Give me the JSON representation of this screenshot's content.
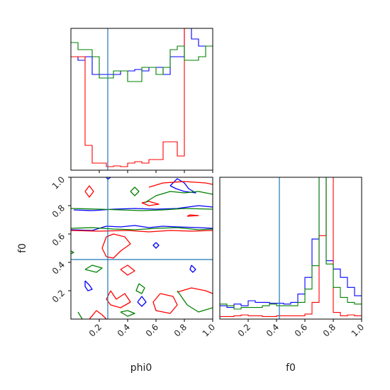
{
  "chart_data": {
    "type": "corner",
    "params": [
      "phi0",
      "f0"
    ],
    "xlabels": [
      "phi0",
      "f0"
    ],
    "ylabels": [
      "",
      "f0"
    ],
    "range": [
      [
        0.0,
        1.0
      ],
      [
        0.0,
        1.0
      ]
    ],
    "truth": {
      "phi0": 0.26,
      "f0": 0.42
    },
    "truth_color": "#1f77b4",
    "ticks": [
      0.2,
      0.4,
      0.6,
      0.8,
      1.0
    ],
    "tick_labels": [
      "0.2",
      "0.4",
      "0.6",
      "0.8",
      "1.0"
    ],
    "series": [
      {
        "color": "#0000ff"
      },
      {
        "color": "#ff0000"
      },
      {
        "color": "#008000"
      }
    ],
    "hist_phi0": {
      "bins": 20,
      "ylim": [
        0,
        2.0
      ],
      "values": [
        [
          1.6,
          1.55,
          1.6,
          1.35,
          1.35,
          1.35,
          1.35,
          1.4,
          1.4,
          1.42,
          1.4,
          1.45,
          1.45,
          1.35,
          1.6,
          1.6,
          2.1,
          1.85,
          1.75,
          1.75
        ],
        [
          1.6,
          1.6,
          0.35,
          0.1,
          0.1,
          0.05,
          0.06,
          0.05,
          0.1,
          0.12,
          0.1,
          0.15,
          0.15,
          0.4,
          0.4,
          0.2,
          2.1,
          2.1,
          2.1,
          2.1
        ],
        [
          1.8,
          1.7,
          1.7,
          1.6,
          1.3,
          1.3,
          1.4,
          1.4,
          1.25,
          1.25,
          1.45,
          1.45,
          1.35,
          1.45,
          1.7,
          1.75,
          1.55,
          1.55,
          1.6,
          1.75
        ]
      ]
    },
    "hist_f0": {
      "bins": 20,
      "ylim": [
        0,
        8.5
      ],
      "values": [
        [
          0.8,
          0.7,
          0.9,
          0.8,
          1.1,
          1.0,
          1.0,
          0.95,
          0.95,
          0.9,
          1.0,
          1.5,
          2.5,
          4.8,
          9.0,
          3.5,
          3.0,
          2.5,
          1.9,
          1.4
        ],
        [
          0.15,
          0.15,
          0.2,
          0.25,
          0.2,
          0.2,
          0.15,
          0.15,
          0.2,
          0.2,
          0.2,
          0.2,
          0.3,
          1.0,
          5.0,
          9.0,
          0.4,
          0.2,
          0.25,
          0.2
        ],
        [
          0.9,
          0.8,
          0.6,
          0.7,
          0.7,
          0.7,
          0.8,
          0.9,
          0.8,
          0.8,
          0.8,
          1.0,
          1.8,
          3.2,
          9.0,
          3.3,
          1.9,
          1.3,
          1.0,
          0.9
        ]
      ]
    },
    "contours": [
      {
        "color": "#0000ff",
        "paths": [
          [
            [
              0.02,
              0.77
            ],
            [
              0.15,
              0.765
            ],
            [
              0.3,
              0.775
            ],
            [
              0.45,
              0.78
            ],
            [
              0.6,
              0.775
            ],
            [
              0.75,
              0.78
            ],
            [
              0.9,
              0.8
            ],
            [
              1.0,
              0.79
            ]
          ],
          [
            [
              0.0,
              0.63
            ],
            [
              0.15,
              0.625
            ],
            [
              0.25,
              0.655
            ],
            [
              0.35,
              0.65
            ],
            [
              0.45,
              0.66
            ],
            [
              0.55,
              0.645
            ],
            [
              0.65,
              0.655
            ],
            [
              0.75,
              0.65
            ],
            [
              0.9,
              0.645
            ],
            [
              1.0,
              0.64
            ]
          ],
          [
            [
              0.7,
              0.94
            ],
            [
              0.75,
              0.99
            ],
            [
              0.8,
              0.96
            ],
            [
              0.83,
              0.92
            ],
            [
              0.88,
              0.89
            ],
            [
              0.8,
              0.9
            ],
            [
              0.74,
              0.92
            ],
            [
              0.7,
              0.94
            ]
          ],
          [
            [
              0.1,
              0.27
            ],
            [
              0.13,
              0.24
            ],
            [
              0.15,
              0.21
            ],
            [
              0.12,
              0.2
            ],
            [
              0.1,
              0.23
            ],
            [
              0.1,
              0.27
            ]
          ],
          [
            [
              0.47,
              0.12
            ],
            [
              0.5,
              0.16
            ],
            [
              0.53,
              0.12
            ],
            [
              0.5,
              0.09
            ],
            [
              0.47,
              0.12
            ]
          ],
          [
            [
              0.85,
              0.38
            ],
            [
              0.88,
              0.35
            ],
            [
              0.86,
              0.33
            ],
            [
              0.84,
              0.35
            ],
            [
              0.85,
              0.38
            ]
          ],
          [
            [
              0.6,
              0.54
            ],
            [
              0.62,
              0.52
            ],
            [
              0.6,
              0.5
            ],
            [
              0.58,
              0.52
            ],
            [
              0.6,
              0.54
            ]
          ],
          [
            [
              0.25,
              1.0
            ],
            [
              0.26,
              0.985
            ],
            [
              0.28,
              1.0
            ]
          ]
        ]
      },
      {
        "color": "#ff0000",
        "paths": [
          [
            [
              0.0,
              0.625
            ],
            [
              0.2,
              0.62
            ],
            [
              0.4,
              0.625
            ],
            [
              0.55,
              0.615
            ],
            [
              0.7,
              0.625
            ],
            [
              0.85,
              0.62
            ],
            [
              1.0,
              0.625
            ]
          ],
          [
            [
              0.1,
              0.9
            ],
            [
              0.13,
              0.94
            ],
            [
              0.16,
              0.9
            ],
            [
              0.13,
              0.86
            ],
            [
              0.1,
              0.9
            ]
          ],
          [
            [
              0.25,
              0.58
            ],
            [
              0.22,
              0.5
            ],
            [
              0.25,
              0.44
            ],
            [
              0.3,
              0.43
            ],
            [
              0.35,
              0.48
            ],
            [
              0.42,
              0.53
            ],
            [
              0.38,
              0.58
            ],
            [
              0.3,
              0.6
            ],
            [
              0.25,
              0.58
            ]
          ],
          [
            [
              0.5,
              0.82
            ],
            [
              0.55,
              0.8
            ],
            [
              0.62,
              0.81
            ],
            [
              0.55,
              0.83
            ],
            [
              0.5,
              0.82
            ]
          ],
          [
            [
              0.55,
              0.93
            ],
            [
              0.65,
              0.96
            ],
            [
              0.8,
              0.97
            ],
            [
              0.95,
              0.96
            ],
            [
              1.0,
              0.95
            ]
          ],
          [
            [
              0.28,
              0.2
            ],
            [
              0.32,
              0.14
            ],
            [
              0.38,
              0.18
            ],
            [
              0.42,
              0.12
            ],
            [
              0.35,
              0.08
            ],
            [
              0.28,
              0.1
            ],
            [
              0.25,
              0.14
            ],
            [
              0.28,
              0.2
            ]
          ],
          [
            [
              0.63,
              0.18
            ],
            [
              0.72,
              0.16
            ],
            [
              0.75,
              0.1
            ],
            [
              0.7,
              0.04
            ],
            [
              0.6,
              0.06
            ],
            [
              0.58,
              0.12
            ],
            [
              0.63,
              0.18
            ]
          ],
          [
            [
              0.35,
              0.35
            ],
            [
              0.4,
              0.38
            ],
            [
              0.45,
              0.34
            ],
            [
              0.4,
              0.31
            ],
            [
              0.35,
              0.35
            ]
          ],
          [
            [
              0.13,
              0.0
            ],
            [
              0.18,
              0.06
            ],
            [
              0.22,
              0.03
            ],
            [
              0.25,
              0.0
            ]
          ],
          [
            [
              0.75,
              0.19
            ],
            [
              0.85,
              0.22
            ],
            [
              0.95,
              0.2
            ],
            [
              1.0,
              0.18
            ]
          ],
          [
            [
              0.82,
              0.725
            ],
            [
              0.9,
              0.73
            ],
            [
              0.84,
              0.735
            ],
            [
              0.82,
              0.725
            ]
          ]
        ]
      },
      {
        "color": "#008000",
        "paths": [
          [
            [
              0.0,
              0.78
            ],
            [
              0.2,
              0.775
            ],
            [
              0.35,
              0.77
            ],
            [
              0.5,
              0.765
            ],
            [
              0.65,
              0.77
            ],
            [
              0.8,
              0.78
            ],
            [
              1.0,
              0.775
            ]
          ],
          [
            [
              0.0,
              0.64
            ],
            [
              0.15,
              0.645
            ],
            [
              0.3,
              0.635
            ],
            [
              0.45,
              0.63
            ],
            [
              0.6,
              0.64
            ],
            [
              0.75,
              0.645
            ],
            [
              0.9,
              0.63
            ],
            [
              1.0,
              0.635
            ]
          ],
          [
            [
              0.52,
              0.82
            ],
            [
              0.6,
              0.87
            ],
            [
              0.7,
              0.9
            ],
            [
              0.8,
              0.89
            ],
            [
              0.9,
              0.9
            ],
            [
              1.0,
              0.88
            ]
          ],
          [
            [
              0.42,
              0.9
            ],
            [
              0.45,
              0.93
            ],
            [
              0.48,
              0.9
            ],
            [
              0.45,
              0.87
            ],
            [
              0.42,
              0.9
            ]
          ],
          [
            [
              0.1,
              0.35
            ],
            [
              0.15,
              0.38
            ],
            [
              0.22,
              0.36
            ],
            [
              0.18,
              0.33
            ],
            [
              0.1,
              0.35
            ]
          ],
          [
            [
              0.48,
              0.25
            ],
            [
              0.52,
              0.22
            ],
            [
              0.5,
              0.18
            ],
            [
              0.46,
              0.2
            ],
            [
              0.48,
              0.25
            ]
          ],
          [
            [
              0.75,
              0.2
            ],
            [
              0.82,
              0.1
            ],
            [
              0.9,
              0.05
            ],
            [
              1.0,
              0.08
            ]
          ],
          [
            [
              0.05,
              0.05
            ],
            [
              0.08,
              0.0
            ]
          ],
          [
            [
              0.35,
              0.05
            ],
            [
              0.4,
              0.02
            ],
            [
              0.45,
              0.04
            ],
            [
              0.4,
              0.06
            ],
            [
              0.35,
              0.05
            ]
          ],
          [
            [
              0.0,
              0.48
            ],
            [
              0.02,
              0.47
            ],
            [
              0.0,
              0.46
            ]
          ]
        ]
      }
    ]
  }
}
